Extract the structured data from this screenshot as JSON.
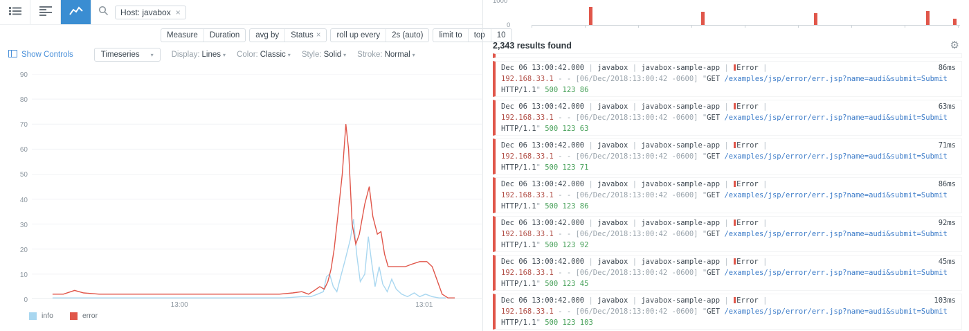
{
  "colors": {
    "accent_blue": "#3a8dd2",
    "link_blue": "#4a90d9",
    "series_info": "#a9d7f0",
    "series_error": "#e0564a",
    "green": "#46a058",
    "ip_red": "#b25048"
  },
  "toolbar": {
    "search_token": "Host: javabox",
    "remove_token": "×"
  },
  "query_bar": {
    "measure_label": "Measure",
    "measure_value": "Duration",
    "avg_by_label": "avg by",
    "group_value": "Status",
    "group_remove": "×",
    "rollup_label": "roll up every",
    "rollup_value": "2s (auto)",
    "limit_label": "limit to",
    "limit_order": "top",
    "limit_count": "10"
  },
  "controls": {
    "show_controls": "Show Controls",
    "viz_select": "Timeseries",
    "caret": "▾",
    "display_label": "Display:",
    "display_value": "Lines",
    "color_label": "Color:",
    "color_value": "Classic",
    "style_label": "Style:",
    "style_value": "Solid",
    "stroke_label": "Stroke:",
    "stroke_value": "Normal"
  },
  "chart_data": {
    "type": "line",
    "ylim": [
      0,
      90
    ],
    "yticks": [
      90,
      80,
      70,
      60,
      50,
      40,
      30,
      20,
      10,
      0
    ],
    "xticks": [
      {
        "label": "13:00",
        "pos": 0.328
      },
      {
        "label": "13:01",
        "pos": 0.872
      }
    ],
    "grid": "horizontal",
    "legend_position": "bottom-left",
    "series": [
      {
        "name": "info",
        "color": "#a9d7f0",
        "points": [
          [
            0.046,
            0.5
          ],
          [
            0.1,
            0.5
          ],
          [
            0.2,
            0.5
          ],
          [
            0.3,
            0.5
          ],
          [
            0.4,
            0.5
          ],
          [
            0.5,
            0.5
          ],
          [
            0.56,
            0.5
          ],
          [
            0.6,
            1
          ],
          [
            0.62,
            1
          ],
          [
            0.635,
            2
          ],
          [
            0.648,
            3
          ],
          [
            0.655,
            9
          ],
          [
            0.662,
            10
          ],
          [
            0.67,
            5
          ],
          [
            0.678,
            3
          ],
          [
            0.688,
            10
          ],
          [
            0.697,
            16
          ],
          [
            0.708,
            24
          ],
          [
            0.715,
            32
          ],
          [
            0.722,
            18
          ],
          [
            0.73,
            7
          ],
          [
            0.74,
            10
          ],
          [
            0.748,
            25
          ],
          [
            0.755,
            15
          ],
          [
            0.763,
            5
          ],
          [
            0.772,
            13
          ],
          [
            0.78,
            6
          ],
          [
            0.79,
            3
          ],
          [
            0.8,
            8
          ],
          [
            0.81,
            4
          ],
          [
            0.822,
            2
          ],
          [
            0.835,
            1
          ],
          [
            0.85,
            2.5
          ],
          [
            0.862,
            1
          ],
          [
            0.875,
            2
          ],
          [
            0.89,
            1
          ],
          [
            0.905,
            0.5
          ],
          [
            0.92,
            0.5
          ]
        ]
      },
      {
        "name": "error",
        "color": "#e0564a",
        "points": [
          [
            0.046,
            2
          ],
          [
            0.07,
            2
          ],
          [
            0.095,
            3.5
          ],
          [
            0.115,
            2.5
          ],
          [
            0.15,
            2
          ],
          [
            0.2,
            2
          ],
          [
            0.25,
            2
          ],
          [
            0.3,
            2
          ],
          [
            0.35,
            2
          ],
          [
            0.4,
            2
          ],
          [
            0.45,
            2
          ],
          [
            0.5,
            2
          ],
          [
            0.55,
            2
          ],
          [
            0.58,
            2.5
          ],
          [
            0.6,
            3
          ],
          [
            0.615,
            2
          ],
          [
            0.628,
            3.5
          ],
          [
            0.64,
            5
          ],
          [
            0.65,
            4
          ],
          [
            0.658,
            7
          ],
          [
            0.665,
            12
          ],
          [
            0.672,
            20
          ],
          [
            0.68,
            33
          ],
          [
            0.69,
            50
          ],
          [
            0.698,
            70
          ],
          [
            0.704,
            60
          ],
          [
            0.712,
            30
          ],
          [
            0.72,
            22
          ],
          [
            0.728,
            26
          ],
          [
            0.74,
            38
          ],
          [
            0.75,
            45
          ],
          [
            0.758,
            33
          ],
          [
            0.768,
            26
          ],
          [
            0.776,
            27
          ],
          [
            0.784,
            18
          ],
          [
            0.792,
            13
          ],
          [
            0.81,
            13
          ],
          [
            0.83,
            13
          ],
          [
            0.845,
            14
          ],
          [
            0.862,
            15
          ],
          [
            0.878,
            15
          ],
          [
            0.89,
            13
          ],
          [
            0.9,
            8
          ],
          [
            0.912,
            2
          ],
          [
            0.925,
            0.5
          ],
          [
            0.94,
            0.5
          ]
        ]
      }
    ]
  },
  "results": {
    "count": "2,343 results found",
    "pipe": "|",
    "quote": "\"",
    "histogram": {
      "ymax": "1000",
      "ymin": "0",
      "bar_color": "#e0564a",
      "bars": [
        {
          "x": 0.134,
          "h": 0.85
        },
        {
          "x": 0.396,
          "h": 0.62
        },
        {
          "x": 0.659,
          "h": 0.57
        },
        {
          "x": 0.921,
          "h": 0.68
        },
        {
          "x": 0.984,
          "h": 0.3
        }
      ]
    },
    "logs": [
      {
        "timestamp": "Dec 06 13:00:42.000",
        "host": "javabox",
        "service": "javabox-sample-app",
        "status": "Error",
        "duration": "86ms",
        "ip": "192.168.33.1",
        "ident": "- -",
        "date": "[06/Dec/2018:13:00:42 -0600]",
        "method": "GET",
        "url": "/examples/jsp/error/err.jsp?name=audi&submit=Submit",
        "protocol": "HTTP/1.1",
        "status_bytes": "500 123 86"
      },
      {
        "timestamp": "Dec 06 13:00:42.000",
        "host": "javabox",
        "service": "javabox-sample-app",
        "status": "Error",
        "duration": "63ms",
        "ip": "192.168.33.1",
        "ident": "- -",
        "date": "[06/Dec/2018:13:00:42 -0600]",
        "method": "GET",
        "url": "/examples/jsp/error/err.jsp?name=audi&submit=Submit",
        "protocol": "HTTP/1.1",
        "status_bytes": "500 123 63"
      },
      {
        "timestamp": "Dec 06 13:00:42.000",
        "host": "javabox",
        "service": "javabox-sample-app",
        "status": "Error",
        "duration": "71ms",
        "ip": "192.168.33.1",
        "ident": "- -",
        "date": "[06/Dec/2018:13:00:42 -0600]",
        "method": "GET",
        "url": "/examples/jsp/error/err.jsp?name=audi&submit=Submit",
        "protocol": "HTTP/1.1",
        "status_bytes": "500 123 71"
      },
      {
        "timestamp": "Dec 06 13:00:42.000",
        "host": "javabox",
        "service": "javabox-sample-app",
        "status": "Error",
        "duration": "86ms",
        "ip": "192.168.33.1",
        "ident": "- -",
        "date": "[06/Dec/2018:13:00:42 -0600]",
        "method": "GET",
        "url": "/examples/jsp/error/err.jsp?name=audi&submit=Submit",
        "protocol": "HTTP/1.1",
        "status_bytes": "500 123 86"
      },
      {
        "timestamp": "Dec 06 13:00:42.000",
        "host": "javabox",
        "service": "javabox-sample-app",
        "status": "Error",
        "duration": "92ms",
        "ip": "192.168.33.1",
        "ident": "- -",
        "date": "[06/Dec/2018:13:00:42 -0600]",
        "method": "GET",
        "url": "/examples/jsp/error/err.jsp?name=audi&submit=Submit",
        "protocol": "HTTP/1.1",
        "status_bytes": "500 123 92"
      },
      {
        "timestamp": "Dec 06 13:00:42.000",
        "host": "javabox",
        "service": "javabox-sample-app",
        "status": "Error",
        "duration": "45ms",
        "ip": "192.168.33.1",
        "ident": "- -",
        "date": "[06/Dec/2018:13:00:42 -0600]",
        "method": "GET",
        "url": "/examples/jsp/error/err.jsp?name=audi&submit=Submit",
        "protocol": "HTTP/1.1",
        "status_bytes": "500 123 45"
      },
      {
        "timestamp": "Dec 06 13:00:42.000",
        "host": "javabox",
        "service": "javabox-sample-app",
        "status": "Error",
        "duration": "103ms",
        "ip": "192.168.33.1",
        "ident": "- -",
        "date": "[06/Dec/2018:13:00:42 -0600]",
        "method": "GET",
        "url": "/examples/jsp/error/err.jsp?name=audi&submit=Submit",
        "protocol": "HTTP/1.1",
        "status_bytes": "500 123 103"
      }
    ]
  }
}
